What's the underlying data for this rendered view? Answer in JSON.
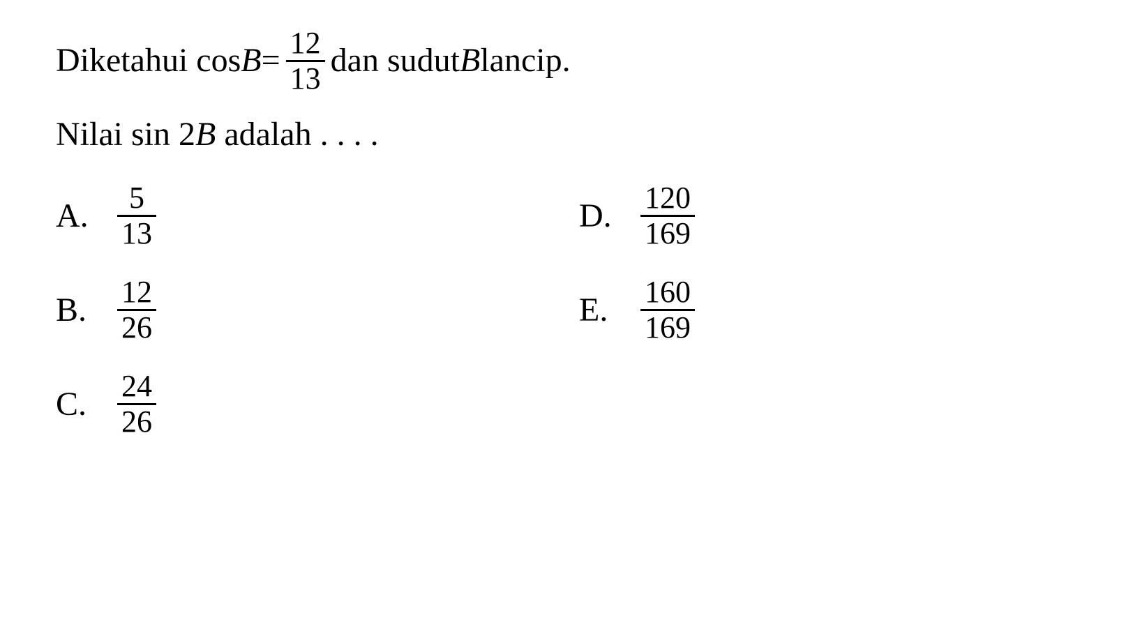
{
  "question": {
    "line1_part1": "Diketahui cos ",
    "line1_var": "B",
    "line1_eq": " = ",
    "line1_frac_num": "12",
    "line1_frac_den": "13",
    "line1_part2": " dan sudut ",
    "line1_var2": "B",
    "line1_part3": " lancip.",
    "line2_part1": "Nilai sin 2",
    "line2_var": "B",
    "line2_part2": " adalah . . . ."
  },
  "options": {
    "A": {
      "label": "A.",
      "num": "5",
      "den": "13"
    },
    "B": {
      "label": "B.",
      "num": "12",
      "den": "26"
    },
    "C": {
      "label": "C.",
      "num": "24",
      "den": "26"
    },
    "D": {
      "label": "D.",
      "num": "120",
      "den": "169"
    },
    "E": {
      "label": "E.",
      "num": "160",
      "den": "169"
    }
  },
  "styling": {
    "background_color": "#ffffff",
    "text_color": "#000000",
    "font_family": "Times New Roman",
    "question_fontsize": 48,
    "option_fontsize": 48,
    "fraction_fontsize": 44,
    "fraction_rule_thickness": 3
  }
}
